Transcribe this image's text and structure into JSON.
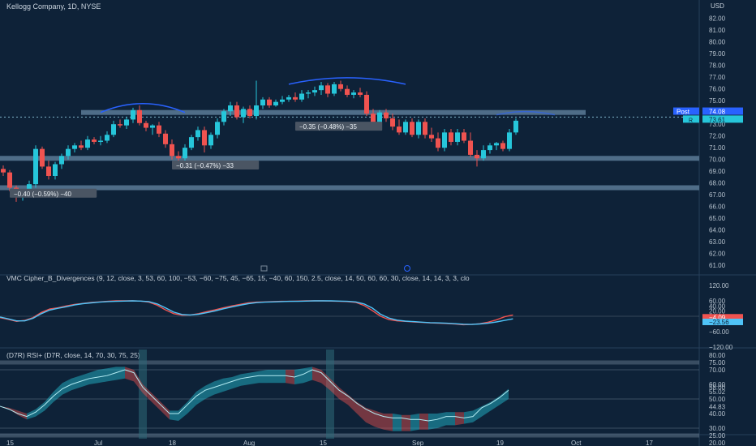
{
  "header": {
    "symbol_title": "Kellogg Company, 1D, NYSE",
    "currency": "USD"
  },
  "colors": {
    "background": "#0e2238",
    "up": "#26c6da",
    "down": "#ef5350",
    "level_band": "#5a7a96",
    "arc": "#2962ff",
    "post_badge": "#2962ff",
    "cipher_fast": "#ef5350",
    "cipher_slow": "#4fc3f7",
    "rsi_line": "#b2ebf2"
  },
  "chart_data": [
    {
      "type": "candlestick",
      "title": "Kellogg Company, 1D, NYSE",
      "ylabel": "USD",
      "ylim": [
        60.6,
        82.6
      ],
      "y_ticks": [
        "82.00",
        "81.00",
        "80.00",
        "79.00",
        "78.00",
        "77.00",
        "76.00",
        "75.00",
        "74.00",
        "73.00",
        "72.00",
        "71.00",
        "70.00",
        "69.00",
        "68.00",
        "67.00",
        "66.00",
        "65.00",
        "64.00",
        "63.00",
        "62.00",
        "61.00"
      ],
      "x_labels": [
        "15",
        "Jul",
        "18",
        "Aug",
        "15",
        "Sep",
        "19",
        "Oct",
        "17"
      ],
      "candles": [
        [
          69.2,
          69.5,
          68.6,
          68.9
        ],
        [
          68.9,
          69.1,
          67.3,
          67.6
        ],
        [
          67.6,
          67.8,
          66.4,
          66.8
        ],
        [
          66.8,
          67.4,
          66.5,
          67.2
        ],
        [
          67.2,
          68.2,
          66.9,
          67.9
        ],
        [
          67.9,
          71.2,
          67.6,
          70.9
        ],
        [
          70.9,
          71.1,
          69.2,
          69.4
        ],
        [
          69.4,
          69.9,
          68.3,
          68.6
        ],
        [
          68.6,
          69.8,
          68.3,
          69.6
        ],
        [
          69.6,
          70.5,
          69.2,
          70.3
        ],
        [
          70.3,
          71.2,
          70.0,
          70.9
        ],
        [
          70.9,
          71.4,
          70.6,
          71.2
        ],
        [
          71.2,
          71.6,
          70.8,
          71.0
        ],
        [
          71.0,
          72.0,
          70.8,
          71.7
        ],
        [
          71.7,
          71.9,
          71.3,
          71.5
        ],
        [
          71.5,
          72.0,
          71.2,
          71.6
        ],
        [
          71.6,
          72.4,
          71.4,
          72.1
        ],
        [
          72.1,
          73.3,
          71.9,
          73.0
        ],
        [
          73.0,
          73.4,
          72.7,
          72.9
        ],
        [
          72.9,
          73.6,
          72.6,
          73.4
        ],
        [
          73.4,
          74.4,
          73.1,
          74.2
        ],
        [
          74.2,
          74.6,
          72.9,
          73.1
        ],
        [
          73.1,
          73.3,
          72.4,
          72.7
        ],
        [
          72.7,
          73.0,
          72.1,
          72.9
        ],
        [
          72.9,
          73.2,
          71.9,
          72.2
        ],
        [
          72.2,
          72.5,
          71.0,
          71.3
        ],
        [
          71.3,
          71.7,
          70.0,
          70.3
        ],
        [
          70.3,
          70.7,
          69.8,
          70.1
        ],
        [
          70.1,
          71.3,
          69.9,
          71.0
        ],
        [
          71.0,
          72.1,
          70.8,
          71.9
        ],
        [
          71.9,
          72.8,
          71.6,
          72.5
        ],
        [
          72.5,
          72.8,
          70.6,
          71.2
        ],
        [
          71.2,
          72.3,
          70.9,
          72.1
        ],
        [
          72.1,
          73.5,
          71.8,
          73.2
        ],
        [
          73.2,
          74.3,
          72.9,
          74.1
        ],
        [
          74.1,
          74.9,
          73.7,
          74.6
        ],
        [
          74.6,
          74.9,
          73.4,
          73.6
        ],
        [
          73.6,
          74.5,
          73.1,
          74.3
        ],
        [
          74.3,
          74.6,
          73.5,
          73.7
        ],
        [
          73.7,
          76.7,
          73.4,
          74.6
        ],
        [
          74.6,
          75.3,
          74.3,
          75.1
        ],
        [
          75.1,
          75.3,
          74.4,
          74.6
        ],
        [
          74.6,
          75.1,
          74.5,
          74.9
        ],
        [
          74.9,
          75.4,
          74.7,
          75.1
        ],
        [
          75.1,
          75.5,
          74.9,
          75.3
        ],
        [
          75.3,
          75.7,
          74.9,
          75.1
        ],
        [
          75.1,
          75.9,
          74.9,
          75.6
        ],
        [
          75.6,
          75.9,
          75.2,
          75.7
        ],
        [
          75.7,
          76.2,
          75.4,
          75.9
        ],
        [
          75.9,
          76.6,
          75.5,
          76.3
        ],
        [
          76.3,
          76.5,
          75.3,
          75.6
        ],
        [
          75.6,
          76.6,
          75.4,
          76.4
        ],
        [
          76.4,
          76.7,
          75.8,
          76.0
        ],
        [
          76.0,
          76.3,
          75.3,
          75.5
        ],
        [
          75.5,
          75.9,
          75.2,
          75.7
        ],
        [
          75.7,
          76.1,
          75.3,
          75.5
        ],
        [
          75.5,
          75.8,
          73.7,
          73.9
        ],
        [
          73.9,
          74.3,
          72.7,
          73.0
        ],
        [
          73.0,
          74.2,
          72.8,
          74.0
        ],
        [
          74.0,
          74.3,
          73.2,
          73.5
        ],
        [
          73.5,
          73.9,
          72.5,
          72.8
        ],
        [
          72.8,
          73.4,
          72.1,
          72.3
        ],
        [
          72.3,
          73.4,
          72.1,
          73.2
        ],
        [
          73.2,
          73.5,
          71.9,
          72.1
        ],
        [
          72.1,
          73.4,
          71.8,
          73.2
        ],
        [
          73.2,
          73.5,
          71.8,
          72.1
        ],
        [
          72.1,
          72.7,
          71.5,
          71.8
        ],
        [
          71.8,
          72.3,
          70.7,
          71.0
        ],
        [
          71.0,
          72.6,
          70.7,
          72.3
        ],
        [
          72.3,
          72.6,
          71.2,
          71.5
        ],
        [
          71.5,
          72.6,
          71.2,
          72.3
        ],
        [
          72.3,
          72.6,
          71.4,
          71.6
        ],
        [
          71.6,
          72.3,
          70.2,
          70.4
        ],
        [
          70.4,
          70.8,
          69.4,
          70.1
        ],
        [
          70.1,
          71.2,
          69.9,
          70.8
        ],
        [
          70.8,
          71.4,
          70.5,
          71.2
        ],
        [
          71.2,
          71.5,
          70.8,
          71.4
        ],
        [
          71.4,
          71.6,
          70.7,
          70.9
        ],
        [
          70.9,
          72.6,
          70.7,
          72.3
        ],
        [
          72.3,
          73.5,
          72.1,
          73.3
        ]
      ],
      "last_price": "74.08",
      "post_label": "Post",
      "post_price": "74.08",
      "current_flag": "R",
      "current_price": "73.61",
      "level_bands": [
        74.0,
        70.1,
        67.6
      ],
      "annotations": [
        {
          "text": "−0.35 (−0.48%) −35",
          "at": [
            45,
            72.8
          ]
        },
        {
          "text": "−0.31 (−0.47%) −33",
          "at": [
            26,
            69.5
          ]
        },
        {
          "text": "−0.40 (−0.59%) −40",
          "at": [
            1,
            67.1
          ]
        }
      ]
    },
    {
      "type": "line",
      "title": "VMC Cipher_B_Divergences (9, 12, close, 3, 53, 60, 100, −53, −60, −75, 45, −65, 15, −40, 60, 150, 2.5, close, 14, 50, 60, 60, 30, close, 14, 14, 3, 3, clo",
      "ylim": [
        -120,
        120
      ],
      "y_ticks": [
        "120.00",
        "60.00",
        "40.00",
        "20.00",
        "0.00",
        "−20.00",
        "−60.00",
        "−120.00"
      ],
      "series": [
        {
          "values": [
            -5,
            -12,
            -20,
            -16,
            -5,
            15,
            28,
            33,
            40,
            46,
            50,
            54,
            56,
            58,
            60,
            60,
            60,
            59,
            55,
            43,
            25,
            10,
            4,
            5,
            10,
            18,
            25,
            33,
            40,
            46,
            52,
            55,
            56,
            57,
            58,
            58,
            59,
            60,
            60,
            60,
            59,
            58,
            57,
            54,
            42,
            22,
            0,
            -13,
            -18,
            -20,
            -22,
            -24,
            -26,
            -27,
            -28,
            -30,
            -33,
            -32,
            -29,
            -23,
            -14,
            -2,
            5
          ]
        },
        {
          "values": [
            -3,
            -10,
            -18,
            -18,
            -8,
            10,
            24,
            31,
            37,
            44,
            49,
            52,
            55,
            57,
            58,
            59,
            60,
            59,
            57,
            48,
            33,
            16,
            7,
            5,
            8,
            14,
            21,
            29,
            36,
            43,
            49,
            53,
            55,
            56,
            57,
            58,
            58,
            59,
            60,
            60,
            60,
            59,
            58,
            56,
            48,
            32,
            8,
            -7,
            -15,
            -19,
            -21,
            -23,
            -25,
            -26,
            -27,
            -29,
            -31,
            -32,
            -30,
            -27,
            -22,
            -16,
            -10
          ]
        }
      ],
      "value_labels": {
        "zero": "0.00",
        "red": "−4.09",
        "blue": "−23.56",
        "small": "−10.00"
      }
    },
    {
      "type": "area",
      "title": "(D7R) RSI+ (D7R, close, 14, 70, 30, 75, 25)",
      "ylim": [
        20,
        80
      ],
      "y_ticks": [
        "80.00",
        "75.00",
        "70.00",
        "60.00",
        "58.00",
        "55.02",
        "50.00",
        "44.83",
        "40.00",
        "30.00",
        "25.00",
        "20.00"
      ],
      "levels": [
        75,
        70,
        50,
        30,
        25
      ],
      "series": [
        {
          "name": "RSI",
          "values": [
            45,
            43,
            40,
            38,
            41,
            46,
            52,
            57,
            60,
            62,
            64,
            65,
            66,
            68,
            70,
            68,
            58,
            52,
            46,
            40,
            40,
            46,
            52,
            56,
            58,
            60,
            62,
            64,
            65,
            66,
            66,
            66,
            66,
            65,
            67,
            70,
            68,
            62,
            56,
            52,
            47,
            43,
            40,
            38,
            37,
            37,
            36,
            36,
            35,
            36,
            38,
            38,
            37,
            38,
            44,
            47,
            51,
            56
          ]
        },
        {
          "name": "Upper",
          "values": [
            45,
            44,
            42,
            40,
            43,
            48,
            55,
            61,
            64,
            66,
            68,
            70,
            71,
            72,
            72,
            70,
            60,
            54,
            48,
            42,
            42,
            48,
            55,
            59,
            62,
            64,
            65,
            67,
            68,
            69,
            70,
            70,
            70,
            70,
            71,
            72,
            70,
            64,
            58,
            53,
            48,
            44,
            42,
            40,
            40,
            39,
            39,
            40,
            40,
            40,
            41,
            41,
            41,
            42,
            45,
            48,
            52,
            57
          ]
        },
        {
          "name": "Lower",
          "values": [
            45,
            43,
            39,
            36,
            38,
            42,
            48,
            53,
            56,
            58,
            60,
            61,
            62,
            63,
            64,
            62,
            54,
            48,
            42,
            36,
            35,
            40,
            46,
            50,
            53,
            55,
            57,
            59,
            60,
            61,
            61,
            61,
            61,
            60,
            61,
            63,
            61,
            56,
            50,
            46,
            40,
            34,
            31,
            29,
            28,
            28,
            28,
            29,
            29,
            30,
            32,
            32,
            33,
            34,
            38,
            42,
            46,
            50
          ]
        }
      ],
      "highlights": [
        [
          16,
          16
        ],
        [
          37,
          37
        ]
      ],
      "value_labels": {
        "a": "58.00",
        "b": "55.02",
        "c": "44.83"
      }
    }
  ]
}
